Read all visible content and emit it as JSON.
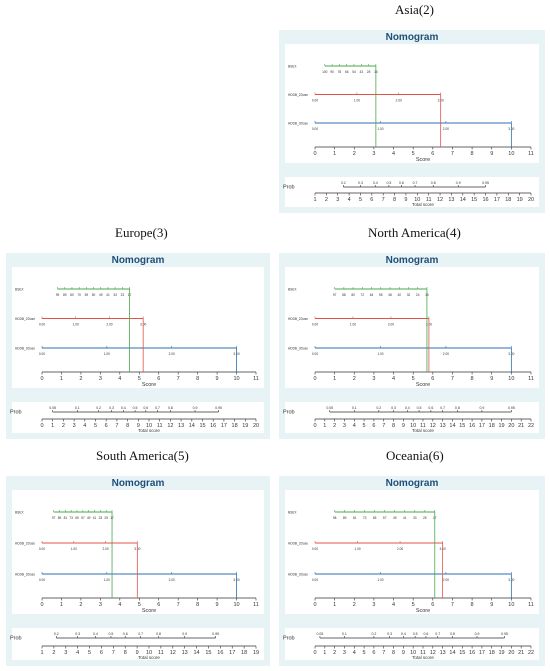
{
  "colors": {
    "panel_bg": "#e7f3f4",
    "plot_bg": "#ffffff",
    "green": "#4aa84a",
    "red": "#e0534a",
    "blue": "#2e6fb0",
    "axis": "#333333"
  },
  "charts": [
    {
      "region": "Asia(2)",
      "chart_data": {
        "type": "nomogram",
        "title": "Nomogram",
        "score_axis": {
          "label": "Score",
          "min": 0,
          "max": 11,
          "ticks": [
            0,
            1,
            2,
            3,
            4,
            5,
            6,
            7,
            8,
            9,
            10,
            11
          ]
        },
        "total_axis": {
          "label": "Total score",
          "min": 1,
          "max": 20,
          "ticks": [
            1,
            2,
            3,
            4,
            5,
            6,
            7,
            8,
            9,
            10,
            11,
            12,
            13,
            14,
            15,
            16,
            17,
            18,
            19,
            20
          ]
        },
        "prob_axis": {
          "label": "Prob",
          "labels": [
            "0.2",
            "0.3",
            "0.4",
            "0.5",
            "0.6",
            "0.7",
            "0.8",
            "0.9",
            "0.95"
          ],
          "positions": [
            3.5,
            5,
            6.3,
            7.5,
            8.6,
            9.8,
            11.4,
            13.6,
            16
          ]
        },
        "variables": [
          {
            "label": "BSEX",
            "color": "green",
            "score_range": [
              0.5,
              3.1
            ],
            "tick_labels": [
              "100",
              "90",
              "78",
              "66",
              "54",
              "43",
              "28",
              "16"
            ]
          },
          {
            "label": "HDDB_2Dose",
            "color": "red",
            "score_range": [
              0,
              6.4
            ],
            "tick_labels": [
              "0.00",
              "1.00",
              "2.00",
              "3.00"
            ]
          },
          {
            "label": "HDDB_3Dose",
            "color": "blue",
            "score_range": [
              0,
              10
            ],
            "tick_labels": [
              "0.00",
              "1.00",
              "2.00",
              "3.00"
            ]
          }
        ],
        "guides": [
          {
            "x": 3.1,
            "color": "green"
          },
          {
            "x": 6.4,
            "color": "red"
          },
          {
            "x": 10,
            "color": "blue"
          }
        ]
      }
    },
    {
      "region": "Europe(3)",
      "chart_data": {
        "type": "nomogram",
        "title": "Nomogram",
        "score_axis": {
          "label": "Score",
          "min": 0,
          "max": 11,
          "ticks": [
            0,
            1,
            2,
            3,
            4,
            5,
            6,
            7,
            8,
            9,
            10,
            11
          ]
        },
        "total_axis": {
          "label": "Total score",
          "min": 0,
          "max": 20,
          "ticks": [
            0,
            1,
            2,
            3,
            4,
            5,
            6,
            7,
            8,
            9,
            10,
            11,
            12,
            13,
            14,
            15,
            16,
            17,
            18,
            19,
            20
          ]
        },
        "prob_axis": {
          "label": "Prob",
          "labels": [
            "0.05",
            "0.1",
            "0.2",
            "0.3",
            "0.4",
            "0.5",
            "0.6",
            "0.7",
            "0.8",
            "0.9",
            "0.95"
          ],
          "positions": [
            1,
            3.3,
            5.3,
            6.5,
            7.6,
            8.7,
            9.7,
            10.8,
            12,
            14.3,
            16.5
          ]
        },
        "variables": [
          {
            "label": "BSEX",
            "color": "green",
            "score_range": [
              0.8,
              4.5
            ],
            "tick_labels": [
              "99",
              "89",
              "80",
              "70",
              "59",
              "50",
              "49",
              "41",
              "33",
              "23",
              "17"
            ]
          },
          {
            "label": "HDDB_2Dose",
            "color": "red",
            "score_range": [
              0,
              5.2
            ],
            "tick_labels": [
              "0.00",
              "1.00",
              "2.00",
              "3.00"
            ]
          },
          {
            "label": "HDDB_3Dose",
            "color": "blue",
            "score_range": [
              0,
              10
            ],
            "tick_labels": [
              "0.00",
              "1.00",
              "2.00",
              "3.00"
            ]
          }
        ],
        "guides": [
          {
            "x": 4.5,
            "color": "green"
          },
          {
            "x": 5.2,
            "color": "red"
          },
          {
            "x": 10,
            "color": "blue"
          }
        ]
      }
    },
    {
      "region": "North America(4)",
      "chart_data": {
        "type": "nomogram",
        "title": "Nomogram",
        "score_axis": {
          "label": "Score",
          "min": 0,
          "max": 11,
          "ticks": [
            0,
            1,
            2,
            3,
            4,
            5,
            6,
            7,
            8,
            9,
            10,
            11
          ]
        },
        "total_axis": {
          "label": "Total score",
          "min": 0,
          "max": 22,
          "ticks": [
            0,
            1,
            2,
            3,
            4,
            5,
            6,
            7,
            8,
            9,
            10,
            11,
            12,
            13,
            14,
            15,
            16,
            17,
            18,
            19,
            20,
            21,
            22
          ]
        },
        "prob_axis": {
          "label": "Prob",
          "labels": [
            "0.05",
            "0.1",
            "0.2",
            "0.3",
            "0.4",
            "0.5",
            "0.6",
            "0.7",
            "0.8",
            "0.9",
            "0.95"
          ],
          "positions": [
            1.5,
            4,
            6.5,
            8,
            9.4,
            10.6,
            11.8,
            13,
            14.5,
            17,
            20
          ]
        },
        "variables": [
          {
            "label": "BSEX",
            "color": "green",
            "score_range": [
              1,
              5.7
            ],
            "tick_labels": [
              "97",
              "88",
              "80",
              "72",
              "64",
              "55",
              "48",
              "40",
              "32",
              "24",
              "16"
            ]
          },
          {
            "label": "HDDB_2Dose",
            "color": "red",
            "score_range": [
              0,
              5.8
            ],
            "tick_labels": [
              "0.00",
              "1.00",
              "2.00",
              "3.00"
            ]
          },
          {
            "label": "HDDB_3Dose",
            "color": "blue",
            "score_range": [
              0,
              10
            ],
            "tick_labels": [
              "0.00",
              "1.00",
              "2.00",
              "3.00"
            ]
          }
        ],
        "guides": [
          {
            "x": 5.7,
            "color": "green"
          },
          {
            "x": 5.8,
            "color": "red"
          },
          {
            "x": 10,
            "color": "blue"
          }
        ]
      }
    },
    {
      "region": "South America(5)",
      "chart_data": {
        "type": "nomogram",
        "title": "Nomogram",
        "score_axis": {
          "label": "Score",
          "min": 0,
          "max": 11,
          "ticks": [
            0,
            1,
            2,
            3,
            4,
            5,
            6,
            7,
            8,
            9,
            10,
            11
          ]
        },
        "total_axis": {
          "label": "Total score",
          "min": 1,
          "max": 19,
          "ticks": [
            1,
            2,
            3,
            4,
            5,
            6,
            7,
            8,
            9,
            10,
            11,
            12,
            13,
            14,
            15,
            16,
            17,
            18,
            19
          ]
        },
        "prob_axis": {
          "label": "Prob",
          "labels": [
            "0.2",
            "0.3",
            "0.4",
            "0.5",
            "0.6",
            "0.7",
            "0.8",
            "0.9",
            "0.95"
          ],
          "positions": [
            2.2,
            4,
            5.5,
            6.8,
            8,
            9.3,
            10.8,
            13,
            15.6
          ]
        },
        "variables": [
          {
            "label": "BSEX",
            "color": "green",
            "score_range": [
              0.6,
              3.6
            ],
            "tick_labels": [
              "97",
              "89",
              "81",
              "73",
              "65",
              "57",
              "49",
              "41",
              "33",
              "25",
              "17"
            ]
          },
          {
            "label": "HDDB_2Dose",
            "color": "red",
            "score_range": [
              0,
              4.9
            ],
            "tick_labels": [
              "0.00",
              "1.00",
              "2.00",
              "3.00"
            ]
          },
          {
            "label": "HDDB_3Dose",
            "color": "blue",
            "score_range": [
              0,
              10
            ],
            "tick_labels": [
              "0.00",
              "1.00",
              "2.00",
              "3.00"
            ]
          }
        ],
        "guides": [
          {
            "x": 3.6,
            "color": "green"
          },
          {
            "x": 4.9,
            "color": "red"
          },
          {
            "x": 10,
            "color": "blue"
          }
        ]
      }
    },
    {
      "region": "Oceania(6)",
      "chart_data": {
        "type": "nomogram",
        "title": "Nomogram",
        "score_axis": {
          "label": "Score",
          "min": 0,
          "max": 11,
          "ticks": [
            0,
            1,
            2,
            3,
            4,
            5,
            6,
            7,
            8,
            9,
            10,
            11
          ]
        },
        "total_axis": {
          "label": "Total score",
          "min": 0,
          "max": 22,
          "ticks": [
            0,
            1,
            2,
            3,
            4,
            5,
            6,
            7,
            8,
            9,
            10,
            11,
            12,
            13,
            14,
            15,
            16,
            17,
            18,
            19,
            20,
            21,
            22
          ]
        },
        "prob_axis": {
          "label": "Prob",
          "labels": [
            "0.05",
            "0.1",
            "0.2",
            "0.3",
            "0.4",
            "0.5",
            "0.6",
            "0.7",
            "0.8",
            "0.9",
            "0.95"
          ],
          "positions": [
            0.5,
            3,
            6,
            7.6,
            9,
            10.2,
            11.3,
            12.5,
            14,
            16.5,
            19.3
          ]
        },
        "variables": [
          {
            "label": "BSEX",
            "color": "green",
            "score_range": [
              1,
              6.1
            ],
            "tick_labels": [
              "98",
              "89",
              "81",
              "73",
              "65",
              "57",
              "49",
              "41",
              "33",
              "25",
              "17"
            ]
          },
          {
            "label": "HDDB_2Dose",
            "color": "red",
            "score_range": [
              0,
              6.5
            ],
            "tick_labels": [
              "0.00",
              "1.00",
              "2.00",
              "3.00"
            ]
          },
          {
            "label": "HDDB_3Dose",
            "color": "blue",
            "score_range": [
              0,
              10
            ],
            "tick_labels": [
              "0.00",
              "1.00",
              "2.00",
              "3.00"
            ]
          }
        ],
        "guides": [
          {
            "x": 6.1,
            "color": "green"
          },
          {
            "x": 6.5,
            "color": "red"
          },
          {
            "x": 10,
            "color": "blue"
          }
        ]
      }
    }
  ]
}
